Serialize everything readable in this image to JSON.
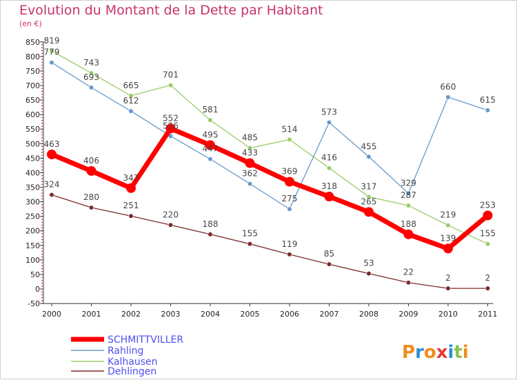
{
  "chart_data": {
    "type": "line",
    "title": "Evolution du Montant de la Dette par Habitant",
    "subtitle": "(en €)",
    "xlabel": "",
    "ylabel": "",
    "x": [
      "2000",
      "2001",
      "2002",
      "2003",
      "2004",
      "2005",
      "2006",
      "2007",
      "2008",
      "2009",
      "2010",
      "2011"
    ],
    "ylim": [
      -50,
      850
    ],
    "yticks": [
      -50,
      0,
      50,
      100,
      150,
      200,
      250,
      300,
      350,
      400,
      450,
      500,
      550,
      600,
      650,
      700,
      750,
      800,
      850
    ],
    "grid": false,
    "legend": "bottom-left",
    "series": [
      {
        "name": "SCHMITTVILLER",
        "color": "#ff0000",
        "values": [
          463,
          406,
          347,
          552,
          495,
          433,
          369,
          318,
          265,
          188,
          139,
          253
        ]
      },
      {
        "name": "Rahling",
        "color": "#6699cc",
        "values": [
          779,
          693,
          612,
          526,
          447,
          362,
          275,
          573,
          455,
          329,
          660,
          615
        ]
      },
      {
        "name": "Kalhausen",
        "color": "#99cc66",
        "values": [
          819,
          743,
          665,
          701,
          581,
          485,
          514,
          416,
          317,
          287,
          219,
          155
        ]
      },
      {
        "name": "Dehlingen",
        "color": "#7a2a2a",
        "values": [
          324,
          280,
          251,
          220,
          188,
          155,
          119,
          85,
          53,
          22,
          2,
          2
        ]
      }
    ]
  },
  "logo": {
    "text": "Proxiti"
  }
}
